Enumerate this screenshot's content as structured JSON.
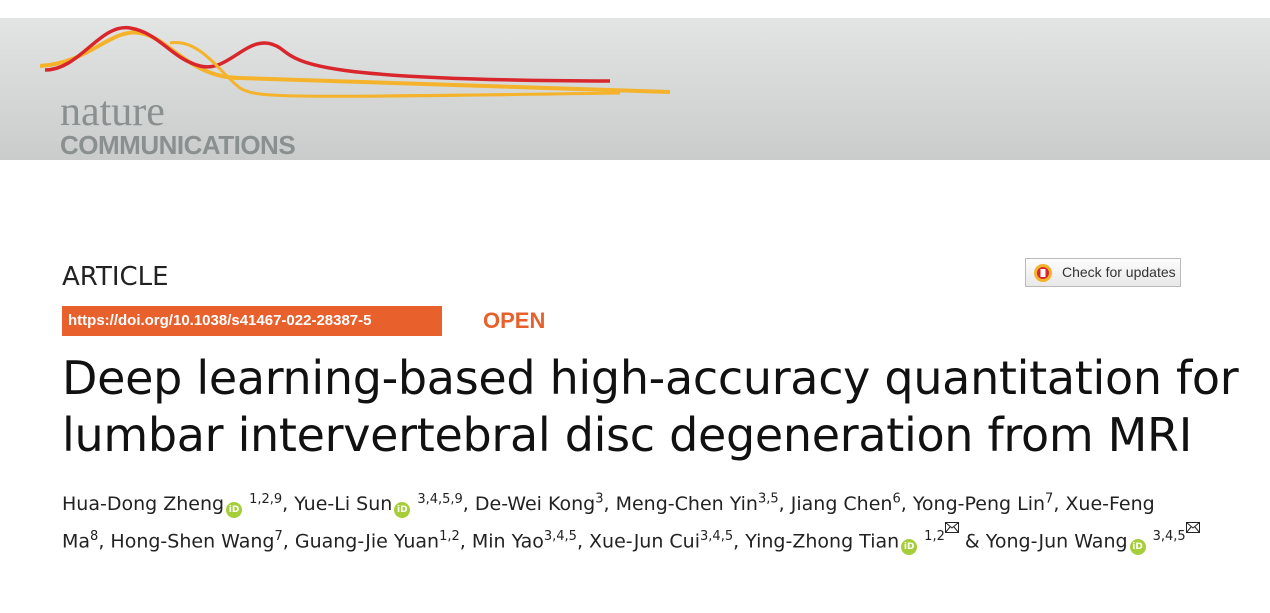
{
  "header": {
    "journal_top": "nature",
    "journal_bottom": "COMMUNICATIONS"
  },
  "article": {
    "type": "ARTICLE",
    "check_updates": "Check for updates",
    "doi": "https://doi.org/10.1038/s41467-022-28387-5",
    "access": "OPEN",
    "title": [
      "Deep learning-based high-accuracy quantitation for",
      "lumbar intervertebral disc degeneration from MRI"
    ],
    "separator": ",",
    "conjunction": "&",
    "authors": [
      {
        "name": "Hua-Dong Zheng",
        "affiliations": "1,2,9",
        "orcid": true,
        "corresponding": false
      },
      {
        "name": "Yue-Li Sun",
        "affiliations": "3,4,5,9",
        "orcid": true,
        "corresponding": false
      },
      {
        "name": "De-Wei Kong",
        "affiliations": "3",
        "orcid": false,
        "corresponding": false
      },
      {
        "name": "Meng-Chen Yin",
        "affiliations": "3,5",
        "orcid": false,
        "corresponding": false
      },
      {
        "name": "Jiang Chen",
        "affiliations": "6",
        "orcid": false,
        "corresponding": false
      },
      {
        "name": "Yong-Peng Lin",
        "affiliations": "7",
        "orcid": false,
        "corresponding": false
      },
      {
        "name": "Xue-Feng Ma",
        "affiliations": "8",
        "orcid": false,
        "corresponding": false
      },
      {
        "name": "Hong-Shen Wang",
        "affiliations": "7",
        "orcid": false,
        "corresponding": false
      },
      {
        "name": "Guang-Jie Yuan",
        "affiliations": "1,2",
        "orcid": false,
        "corresponding": false
      },
      {
        "name": "Min Yao",
        "affiliations": "3,4,5",
        "orcid": false,
        "corresponding": false
      },
      {
        "name": "Xue-Jun Cui",
        "affiliations": "3,4,5",
        "orcid": false,
        "corresponding": false
      },
      {
        "name": "Ying-Zhong Tian",
        "affiliations": "1,2",
        "orcid": true,
        "corresponding": true
      },
      {
        "name": "Yong-Jun Wang",
        "affiliations": "3,4,5",
        "orcid": true,
        "corresponding": true
      }
    ]
  }
}
